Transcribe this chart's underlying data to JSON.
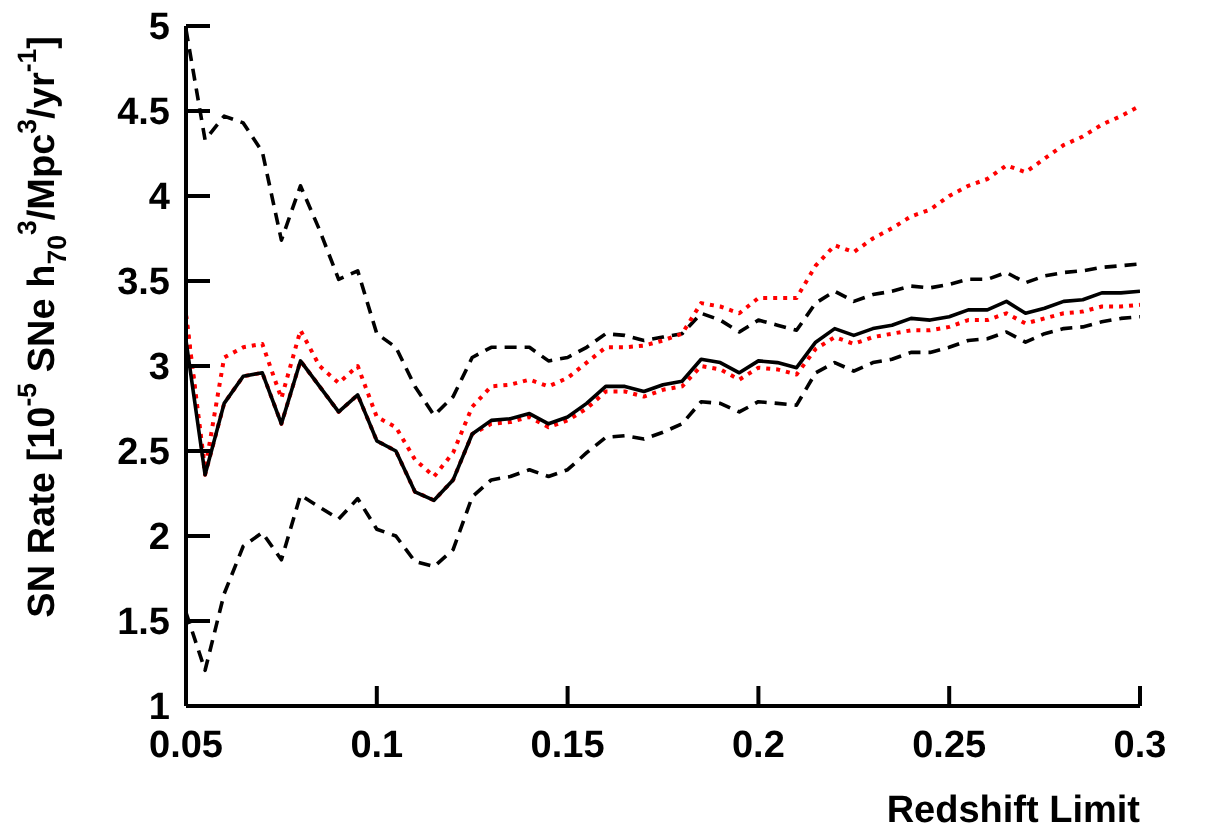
{
  "chart_data": {
    "type": "line",
    "xlabel": "Redshift Limit",
    "ylabel": "SN Rate [10$^{-5}$ SNe h$_{70}$$^{3}$/Mpc$^{3}$/yr$^{-1}$]",
    "x": [
      0.05,
      0.055,
      0.06,
      0.065,
      0.07,
      0.075,
      0.08,
      0.085,
      0.09,
      0.095,
      0.1,
      0.105,
      0.11,
      0.115,
      0.12,
      0.125,
      0.13,
      0.135,
      0.14,
      0.145,
      0.15,
      0.155,
      0.16,
      0.165,
      0.17,
      0.175,
      0.18,
      0.185,
      0.19,
      0.195,
      0.2,
      0.205,
      0.21,
      0.215,
      0.22,
      0.225,
      0.23,
      0.235,
      0.24,
      0.245,
      0.25,
      0.255,
      0.26,
      0.265,
      0.27,
      0.275,
      0.28,
      0.285,
      0.29,
      0.295,
      0.3
    ],
    "series": [
      {
        "color": "#000000",
        "line_style": "dashed",
        "values": [
          4.98,
          4.33,
          4.47,
          4.43,
          4.26,
          3.74,
          4.06,
          3.8,
          3.51,
          3.56,
          3.19,
          3.11,
          2.88,
          2.71,
          2.82,
          3.05,
          3.11,
          3.11,
          3.11,
          3.03,
          3.05,
          3.11,
          3.19,
          3.18,
          3.15,
          3.17,
          3.19,
          3.31,
          3.27,
          3.2,
          3.27,
          3.24,
          3.21,
          3.37,
          3.44,
          3.38,
          3.42,
          3.44,
          3.47,
          3.46,
          3.48,
          3.51,
          3.51,
          3.55,
          3.49,
          3.53,
          3.55,
          3.56,
          3.58,
          3.59,
          3.6
        ]
      },
      {
        "color": "#000000",
        "line_style": "dashed",
        "values": [
          1.55,
          1.21,
          1.66,
          1.94,
          2.02,
          1.86,
          2.24,
          2.17,
          2.1,
          2.22,
          2.04,
          2.0,
          1.85,
          1.82,
          1.92,
          2.23,
          2.33,
          2.35,
          2.39,
          2.35,
          2.39,
          2.49,
          2.58,
          2.59,
          2.57,
          2.61,
          2.66,
          2.79,
          2.78,
          2.73,
          2.79,
          2.78,
          2.77,
          2.96,
          3.02,
          2.97,
          3.02,
          3.04,
          3.08,
          3.08,
          3.11,
          3.15,
          3.16,
          3.2,
          3.14,
          3.19,
          3.22,
          3.23,
          3.26,
          3.28,
          3.29
        ]
      },
      {
        "color": "#ff0000",
        "line_style": "dotted",
        "values": [
          3.3,
          2.39,
          3.05,
          3.11,
          3.13,
          2.81,
          3.21,
          3.0,
          2.9,
          3.0,
          2.7,
          2.64,
          2.45,
          2.35,
          2.49,
          2.76,
          2.88,
          2.89,
          2.92,
          2.88,
          2.93,
          3.02,
          3.11,
          3.11,
          3.12,
          3.15,
          3.19,
          3.37,
          3.35,
          3.31,
          3.4,
          3.4,
          3.4,
          3.59,
          3.71,
          3.67,
          3.75,
          3.81,
          3.88,
          3.92,
          4.0,
          4.06,
          4.1,
          4.18,
          4.14,
          4.22,
          4.3,
          4.35,
          4.42,
          4.47,
          4.53
        ]
      },
      {
        "color": "#ff0000",
        "line_style": "dotted",
        "values": [
          3.3,
          2.36,
          2.78,
          2.94,
          2.96,
          2.66,
          3.03,
          2.88,
          2.73,
          2.83,
          2.56,
          2.5,
          2.26,
          2.21,
          2.33,
          2.6,
          2.66,
          2.67,
          2.7,
          2.64,
          2.68,
          2.75,
          2.85,
          2.85,
          2.82,
          2.86,
          2.88,
          3.0,
          2.98,
          2.92,
          2.99,
          2.98,
          2.95,
          3.1,
          3.17,
          3.13,
          3.17,
          3.19,
          3.21,
          3.21,
          3.23,
          3.27,
          3.27,
          3.31,
          3.25,
          3.28,
          3.31,
          3.32,
          3.35,
          3.35,
          3.36
        ]
      },
      {
        "color": "#000000",
        "line_style": "solid",
        "values": [
          3.15,
          2.36,
          2.78,
          2.94,
          2.96,
          2.66,
          3.03,
          2.88,
          2.73,
          2.83,
          2.56,
          2.5,
          2.26,
          2.21,
          2.33,
          2.6,
          2.68,
          2.69,
          2.72,
          2.66,
          2.7,
          2.78,
          2.88,
          2.88,
          2.85,
          2.89,
          2.91,
          3.04,
          3.02,
          2.96,
          3.03,
          3.02,
          2.99,
          3.14,
          3.22,
          3.18,
          3.22,
          3.24,
          3.28,
          3.27,
          3.29,
          3.33,
          3.33,
          3.38,
          3.31,
          3.34,
          3.38,
          3.39,
          3.43,
          3.43,
          3.44
        ]
      }
    ],
    "xlim": [
      0.05,
      0.3
    ],
    "xticks": [
      0.05,
      0.1,
      0.15,
      0.2,
      0.25,
      0.3
    ],
    "ylim": [
      1,
      5
    ],
    "yticks": [
      1,
      1.5,
      2,
      2.5,
      3,
      3.5,
      4,
      4.5,
      5
    ],
    "grid": false,
    "legend": false
  }
}
